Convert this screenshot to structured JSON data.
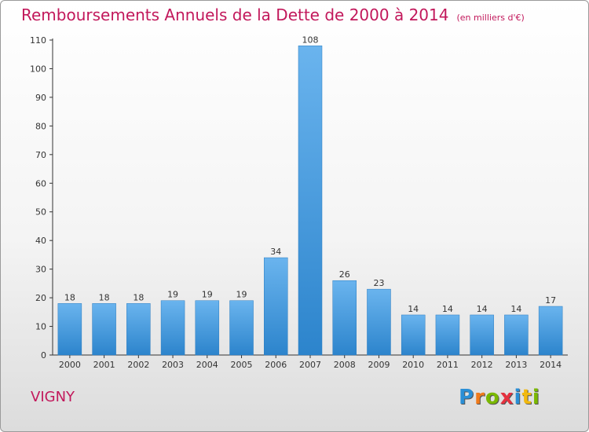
{
  "title": "Remboursements Annuels de la Dette de 2000 à 2014",
  "subtitle": "(en milliers d'€)",
  "commune": "VIGNY",
  "logo": {
    "text": "Proxiti",
    "letters": [
      {
        "ch": "P",
        "color": "#2a8fd6"
      },
      {
        "ch": "r",
        "color": "#f07a1a"
      },
      {
        "ch": "o",
        "color": "#7ab800"
      },
      {
        "ch": "x",
        "color": "#e5313f"
      },
      {
        "ch": "i",
        "color": "#2a8fd6"
      },
      {
        "ch": "t",
        "color": "#f2b90f"
      },
      {
        "ch": "i",
        "color": "#7ab800"
      }
    ]
  },
  "colors": {
    "title": "#c2185b",
    "bar_light": "#6ab4ee",
    "bar_dark": "#2c84cc",
    "axis": "#333333"
  },
  "chart_data": {
    "type": "bar",
    "title": "Remboursements Annuels de la Dette de 2000 à 2014",
    "subtitle": "(en milliers d'€)",
    "xlabel": "",
    "ylabel": "",
    "categories": [
      "2000",
      "2001",
      "2002",
      "2003",
      "2004",
      "2005",
      "2006",
      "2007",
      "2008",
      "2009",
      "2010",
      "2011",
      "2012",
      "2013",
      "2014"
    ],
    "values": [
      18,
      18,
      18,
      19,
      19,
      19,
      34,
      108,
      26,
      23,
      14,
      14,
      14,
      14,
      17
    ],
    "ylim": [
      0,
      110
    ],
    "yticks": [
      0,
      10,
      20,
      30,
      40,
      50,
      60,
      70,
      80,
      90,
      100,
      110
    ],
    "grid": false,
    "data_labels": true
  }
}
